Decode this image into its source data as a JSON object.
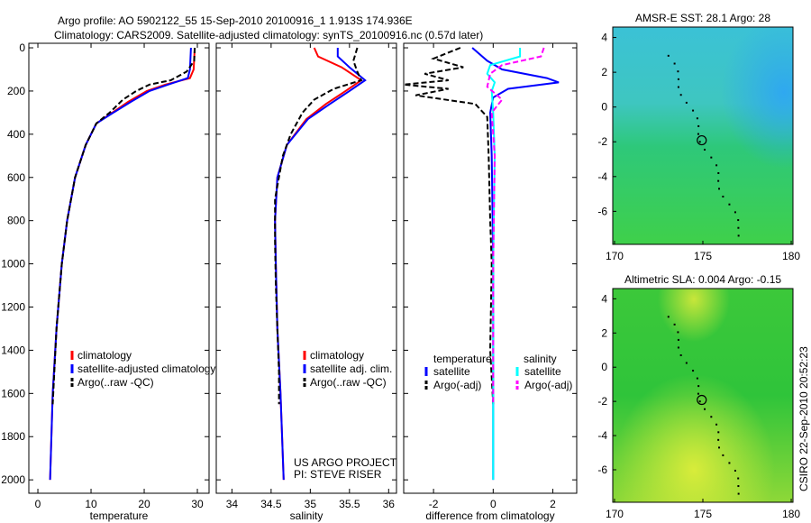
{
  "title_line1": "Argo profile: AO 5902122_55 15-Sep-2010 20100916_1 1.913S 174.936E",
  "title_line2": "Climatology: CARS2009. Satellite-adjusted climatology: synTS_20100916.nc (0.57d later)",
  "side_label": "CSIRO 22-Sep-2010 20:52:23",
  "colors": {
    "climatology": "#ff0000",
    "satellite": "#0000ff",
    "argo": "#000000",
    "sal_satellite": "#00ffff",
    "sal_argo": "#ff00ff"
  },
  "chart_data": [
    {
      "type": "line",
      "xlabel": "temperature",
      "ylabel": "",
      "xlim": [
        -1.7,
        32.2
      ],
      "ylim": [
        2062,
        -21
      ],
      "xticks": [
        "0",
        "10",
        "20",
        "30"
      ],
      "xtick_values": [
        0,
        10,
        20,
        30
      ],
      "yticks": [
        "0",
        "200",
        "400",
        "600",
        "800",
        "1000",
        "1200",
        "1400",
        "1600",
        "1800",
        "2000"
      ],
      "ytick_values": [
        0,
        200,
        400,
        600,
        800,
        1000,
        1200,
        1400,
        1600,
        1800,
        2000
      ],
      "legend": [
        "climatology",
        "satellite-adjusted climatology",
        "Argo(..raw -QC)"
      ],
      "series": [
        {
          "name": "climatology",
          "color": "#ff0000",
          "dash": false,
          "depth": [
            0,
            100,
            140,
            170,
            200,
            250,
            300,
            350,
            450,
            600,
            800,
            1000,
            1300,
            1600,
            2000
          ],
          "value": [
            29.5,
            29.3,
            28.6,
            24,
            20.5,
            17,
            14,
            11,
            9,
            7,
            5.5,
            4.5,
            3.5,
            2.8,
            2.3
          ]
        },
        {
          "name": "satellite",
          "color": "#0000ff",
          "dash": false,
          "depth": [
            0,
            100,
            140,
            170,
            200,
            250,
            300,
            350,
            450,
            600,
            800,
            1000,
            1300,
            1600,
            2000
          ],
          "value": [
            28.8,
            28.6,
            28.2,
            24.5,
            21,
            17.5,
            14.2,
            11,
            9,
            7,
            5.5,
            4.5,
            3.5,
            2.8,
            2.3
          ]
        },
        {
          "name": "Argo",
          "color": "#000000",
          "dash": true,
          "depth": [
            0,
            60,
            110,
            150,
            170,
            200,
            240,
            300,
            350,
            450,
            600,
            800,
            1000,
            1300,
            1600,
            1650
          ],
          "value": [
            29.5,
            29.4,
            28,
            25,
            21,
            18.5,
            16,
            13.5,
            11,
            9,
            7,
            5.5,
            4.5,
            3.5,
            2.9,
            2.8
          ]
        }
      ]
    },
    {
      "type": "line",
      "xlabel": "salinity",
      "xlim": [
        33.8,
        36.1
      ],
      "ylim": [
        2062,
        -21
      ],
      "xticks": [
        "34",
        "34.5",
        "35",
        "35.5",
        "36"
      ],
      "xtick_values": [
        34,
        34.5,
        35,
        35.5,
        36
      ],
      "legend": [
        "climatology",
        "satellite adj. clim.",
        "Argo(..raw -QC)"
      ],
      "annotation": [
        "US ARGO PROJECT",
        "PI: STEVE RISER"
      ],
      "series": [
        {
          "name": "climatology",
          "color": "#ff0000",
          "dash": false,
          "depth": [
            0,
            40,
            90,
            150,
            200,
            260,
            330,
            450,
            600,
            800,
            1000,
            1300,
            1600,
            2000
          ],
          "value": [
            35.05,
            35.1,
            35.4,
            35.65,
            35.45,
            35.2,
            34.95,
            34.7,
            34.58,
            34.55,
            34.56,
            34.58,
            34.62,
            34.66
          ]
        },
        {
          "name": "satellite",
          "color": "#0000ff",
          "dash": false,
          "depth": [
            0,
            40,
            90,
            150,
            200,
            260,
            330,
            450,
            600,
            800,
            1000,
            1300,
            1600,
            2000
          ],
          "value": [
            35.35,
            35.35,
            35.5,
            35.7,
            35.5,
            35.25,
            34.97,
            34.7,
            34.58,
            34.55,
            34.56,
            34.58,
            34.62,
            34.66
          ]
        },
        {
          "name": "Argo",
          "color": "#000000",
          "dash": true,
          "depth": [
            0,
            60,
            110,
            150,
            190,
            240,
            300,
            400,
            500,
            700,
            900,
            1100,
            1300,
            1500,
            1650
          ],
          "value": [
            35.6,
            35.55,
            35.6,
            35.65,
            35.3,
            35.05,
            34.9,
            34.75,
            34.65,
            34.55,
            34.55,
            34.56,
            34.58,
            34.6,
            34.6
          ]
        }
      ]
    },
    {
      "type": "line",
      "xlabel": "difference from climatology",
      "xlim": [
        -3,
        2.8
      ],
      "ylim": [
        2062,
        -21
      ],
      "xticks": [
        "-2",
        "0",
        "2"
      ],
      "xtick_values": [
        -2,
        0,
        2
      ],
      "legend": {
        "temperature_title": "temperature",
        "salinity_title": "salinity",
        "items": [
          "satellite",
          "Argo(-adj)",
          "satellite",
          "Argo(-adj)"
        ]
      },
      "series": [
        {
          "name": "temperature satellite",
          "color": "#0000ff",
          "dash": false,
          "depth": [
            0,
            60,
            100,
            140,
            160,
            190,
            230,
            300,
            500,
            1000,
            2000
          ],
          "value": [
            -0.7,
            -0.2,
            0.3,
            1.8,
            2.2,
            0.5,
            0,
            -0.1,
            -0.05,
            0,
            0
          ]
        },
        {
          "name": "temperature Argo(-adj)",
          "color": "#000000",
          "dash": true,
          "depth": [
            0,
            50,
            90,
            120,
            150,
            170,
            190,
            220,
            260,
            320,
            500,
            800,
            1000,
            1400,
            1650
          ],
          "value": [
            -1.1,
            -2,
            -1,
            -2.3,
            -1.5,
            -3,
            -1.5,
            -2.6,
            -0.6,
            -0.2,
            -0.15,
            -0.1,
            -0.05,
            -0.1,
            0
          ]
        },
        {
          "name": "salinity satellite",
          "color": "#00ffff",
          "dash": false,
          "depth": [
            0,
            40,
            80,
            120,
            160,
            200,
            300,
            500,
            1000,
            2000
          ],
          "value": [
            0.9,
            0.9,
            -0.1,
            -0.2,
            0.05,
            -0.05,
            0,
            0.05,
            0,
            0
          ]
        },
        {
          "name": "salinity Argo(-adj)",
          "color": "#ff00ff",
          "dash": true,
          "depth": [
            0,
            40,
            80,
            120,
            180,
            240,
            300,
            500,
            1000,
            1650
          ],
          "value": [
            1.7,
            1.6,
            0.3,
            -0.1,
            -0.2,
            0.3,
            -0.05,
            0.05,
            0,
            0
          ]
        }
      ]
    },
    {
      "type": "heatmap",
      "title": "AMSR-E SST: 28.1 Argo: 28",
      "xlim": [
        169.9,
        180.1
      ],
      "ylim": [
        -7.9,
        4.6
      ],
      "xticks": [
        "170",
        "175",
        "180"
      ],
      "xtick_values": [
        170,
        175,
        180
      ],
      "yticks": [
        "4",
        "2",
        "0",
        "-2",
        "-4",
        "-6"
      ],
      "ytick_values": [
        4,
        2,
        0,
        -2,
        -4,
        -6
      ],
      "marker": {
        "lon": 174.936,
        "lat": -1.913
      }
    },
    {
      "type": "heatmap",
      "title": "Altimetric SLA: 0.004 Argo: -0.15",
      "xlim": [
        169.9,
        180.1
      ],
      "ylim": [
        -7.9,
        4.6
      ],
      "xticks": [
        "170",
        "175",
        "180"
      ],
      "xtick_values": [
        170,
        175,
        180
      ],
      "yticks": [
        "4",
        "2",
        "0",
        "-2",
        "-4",
        "-6"
      ],
      "ytick_values": [
        4,
        2,
        0,
        -2,
        -4,
        -6
      ],
      "marker": {
        "lon": 174.936,
        "lat": -1.913
      }
    }
  ]
}
